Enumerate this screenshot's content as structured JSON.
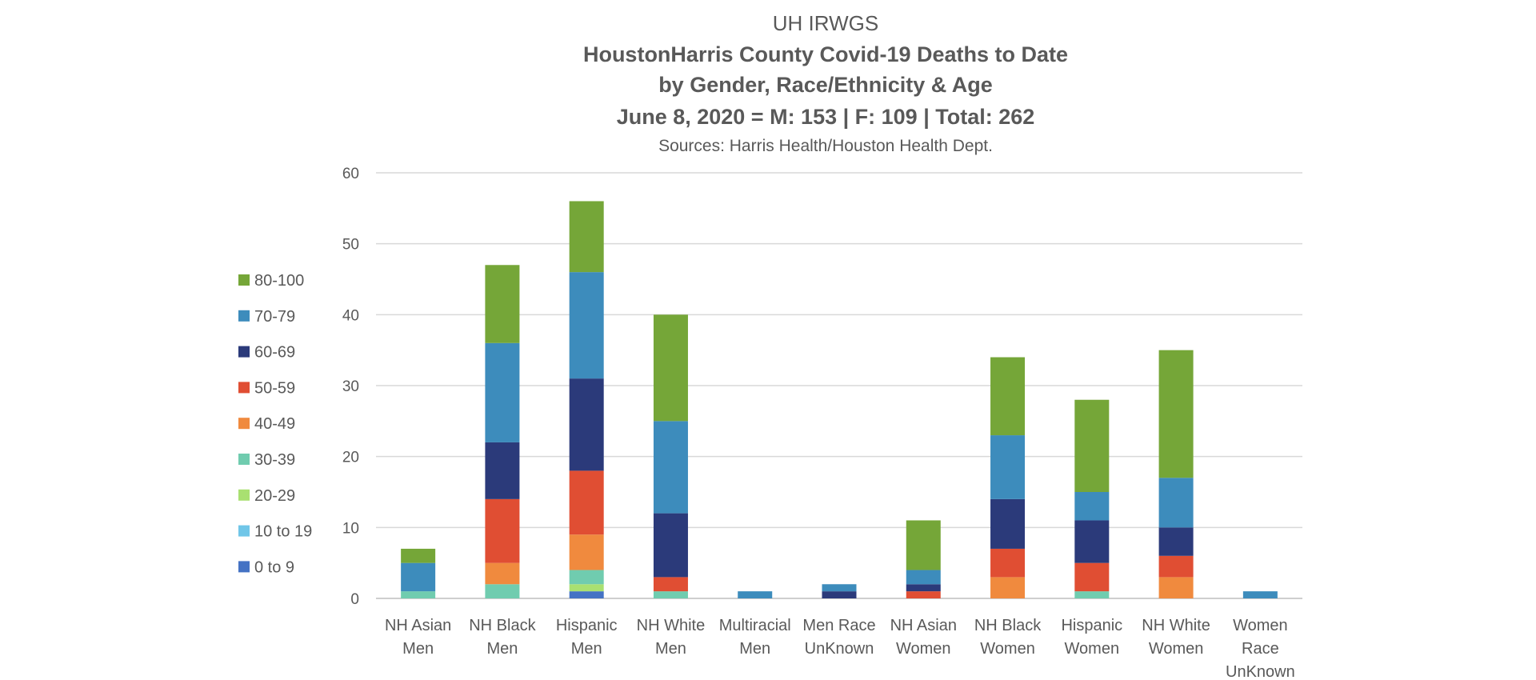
{
  "chart_data": {
    "type": "bar",
    "stacked": true,
    "title": "UH IRWGS",
    "subtitle_lines": [
      "HoustonHarris County Covid-19 Deaths to Date",
      "by Gender, Race/Ethnicity & Age",
      "June 8, 2020 = M: 153 | F: 109 | Total: 262"
    ],
    "source": "Sources: Harris Health/Houston Health Dept.",
    "xlabel": "",
    "ylabel": "",
    "ylim": [
      0,
      60
    ],
    "yticks": [
      0,
      10,
      20,
      30,
      40,
      50,
      60
    ],
    "grid": true,
    "legend_position": "left",
    "categories": [
      [
        "NH Asian",
        "Men"
      ],
      [
        "NH Black",
        "Men"
      ],
      [
        "Hispanic",
        "Men"
      ],
      [
        "NH White",
        "Men"
      ],
      [
        "Multiracial",
        "Men"
      ],
      [
        "Men Race",
        "UnKnown"
      ],
      [
        "NH Asian",
        "Women"
      ],
      [
        "NH Black",
        "Women"
      ],
      [
        "Hispanic",
        "Women"
      ],
      [
        "NH White",
        "Women"
      ],
      [
        "Women",
        "Race",
        "UnKnown"
      ]
    ],
    "series": [
      {
        "name": "0 to 9",
        "color": "#4472c4",
        "values": [
          0,
          0,
          1,
          0,
          0,
          0,
          0,
          0,
          0,
          0,
          0
        ]
      },
      {
        "name": "10 to 19",
        "color": "#70c6e8",
        "values": [
          0,
          0,
          0,
          0,
          0,
          0,
          0,
          0,
          0,
          0,
          0
        ]
      },
      {
        "name": "20-29",
        "color": "#a9e071",
        "values": [
          0,
          0,
          1,
          0,
          0,
          0,
          0,
          0,
          0,
          0,
          0
        ]
      },
      {
        "name": "30-39",
        "color": "#70ccaf",
        "values": [
          1,
          2,
          2,
          1,
          0,
          0,
          0,
          0,
          1,
          0,
          0
        ]
      },
      {
        "name": "40-49",
        "color": "#f08a3e",
        "values": [
          0,
          3,
          5,
          0,
          0,
          0,
          0,
          3,
          0,
          3,
          0
        ]
      },
      {
        "name": "50-59",
        "color": "#e04e33",
        "values": [
          0,
          9,
          9,
          2,
          0,
          0,
          1,
          4,
          4,
          3,
          0
        ]
      },
      {
        "name": "60-69",
        "color": "#2b3a7a",
        "values": [
          0,
          8,
          13,
          9,
          0,
          1,
          1,
          7,
          6,
          4,
          0
        ]
      },
      {
        "name": "70-79",
        "color": "#3d8cbc",
        "values": [
          4,
          14,
          15,
          13,
          1,
          1,
          2,
          9,
          4,
          7,
          1
        ]
      },
      {
        "name": "80-100",
        "color": "#75a638",
        "values": [
          2,
          11,
          10,
          15,
          0,
          0,
          7,
          11,
          13,
          18,
          0
        ]
      }
    ]
  }
}
